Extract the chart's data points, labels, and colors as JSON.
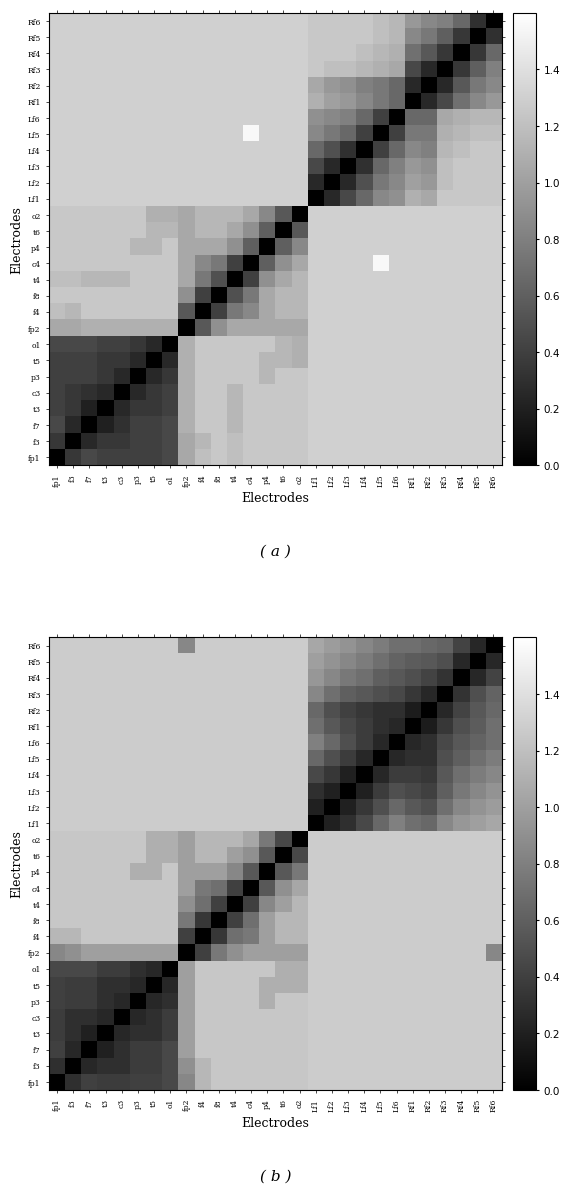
{
  "labels": [
    "fp1",
    "f3",
    "f7",
    "t3",
    "c3",
    "p3",
    "t5",
    "o1",
    "fp2",
    "f4",
    "f8",
    "t4",
    "c4",
    "p4",
    "t6",
    "o2",
    "Lf1",
    "Lf2",
    "Lf3",
    "Lf4",
    "Lf5",
    "Lf6",
    "Rf1",
    "Rf2",
    "Rf3",
    "Rf4",
    "Rf5",
    "Rf6"
  ],
  "vmin": 0,
  "vmax": 1.6,
  "colorbar_ticks": [
    0,
    0.2,
    0.4,
    0.6,
    0.8,
    1.0,
    1.2,
    1.4
  ],
  "xlabel": "Electrodes",
  "ylabel": "Electrodes",
  "label_a": "( a )",
  "label_b": "( b )",
  "cmap": "gray",
  "matrix_a": [
    [
      0.0,
      0.35,
      0.45,
      0.4,
      0.4,
      0.4,
      0.4,
      0.45,
      1.05,
      1.2,
      1.25,
      1.2,
      1.25,
      1.25,
      1.25,
      1.25,
      1.3,
      1.3,
      1.3,
      1.3,
      1.3,
      1.3,
      1.3,
      1.3,
      1.3,
      1.3,
      1.3,
      1.3
    ],
    [
      0.35,
      0.0,
      0.25,
      0.35,
      0.35,
      0.4,
      0.4,
      0.45,
      1.05,
      1.15,
      1.25,
      1.2,
      1.25,
      1.25,
      1.25,
      1.25,
      1.3,
      1.3,
      1.3,
      1.3,
      1.3,
      1.3,
      1.3,
      1.3,
      1.3,
      1.3,
      1.3,
      1.3
    ],
    [
      0.45,
      0.25,
      0.0,
      0.2,
      0.3,
      0.4,
      0.4,
      0.45,
      1.1,
      1.25,
      1.25,
      1.15,
      1.25,
      1.25,
      1.25,
      1.25,
      1.3,
      1.3,
      1.3,
      1.3,
      1.3,
      1.3,
      1.3,
      1.3,
      1.3,
      1.3,
      1.3,
      1.3
    ],
    [
      0.4,
      0.35,
      0.2,
      0.0,
      0.25,
      0.35,
      0.35,
      0.4,
      1.1,
      1.25,
      1.25,
      1.15,
      1.25,
      1.25,
      1.25,
      1.25,
      1.3,
      1.3,
      1.3,
      1.3,
      1.3,
      1.3,
      1.3,
      1.3,
      1.3,
      1.3,
      1.3,
      1.3
    ],
    [
      0.4,
      0.35,
      0.3,
      0.25,
      0.0,
      0.25,
      0.35,
      0.4,
      1.1,
      1.25,
      1.25,
      1.15,
      1.25,
      1.25,
      1.25,
      1.25,
      1.3,
      1.3,
      1.3,
      1.3,
      1.3,
      1.3,
      1.3,
      1.3,
      1.3,
      1.3,
      1.3,
      1.3
    ],
    [
      0.4,
      0.4,
      0.4,
      0.35,
      0.25,
      0.0,
      0.25,
      0.35,
      1.1,
      1.25,
      1.25,
      1.25,
      1.25,
      1.15,
      1.25,
      1.25,
      1.3,
      1.3,
      1.3,
      1.3,
      1.3,
      1.3,
      1.3,
      1.3,
      1.3,
      1.3,
      1.3,
      1.3
    ],
    [
      0.4,
      0.4,
      0.4,
      0.35,
      0.35,
      0.25,
      0.0,
      0.25,
      1.1,
      1.25,
      1.25,
      1.25,
      1.25,
      1.15,
      1.15,
      1.1,
      1.3,
      1.3,
      1.3,
      1.3,
      1.3,
      1.3,
      1.3,
      1.3,
      1.3,
      1.3,
      1.3,
      1.3
    ],
    [
      0.45,
      0.45,
      0.45,
      0.4,
      0.4,
      0.35,
      0.25,
      0.0,
      1.1,
      1.25,
      1.25,
      1.25,
      1.25,
      1.25,
      1.15,
      1.1,
      1.3,
      1.3,
      1.3,
      1.3,
      1.3,
      1.3,
      1.3,
      1.3,
      1.3,
      1.3,
      1.3,
      1.3
    ],
    [
      1.05,
      1.05,
      1.1,
      1.1,
      1.1,
      1.1,
      1.1,
      1.1,
      0.0,
      0.55,
      0.9,
      1.05,
      1.05,
      1.05,
      1.05,
      1.05,
      1.3,
      1.3,
      1.3,
      1.3,
      1.3,
      1.3,
      1.3,
      1.3,
      1.3,
      1.3,
      1.3,
      1.3
    ],
    [
      1.2,
      1.15,
      1.25,
      1.25,
      1.25,
      1.25,
      1.25,
      1.25,
      0.55,
      0.0,
      0.4,
      0.75,
      0.85,
      1.05,
      1.15,
      1.15,
      1.3,
      1.3,
      1.3,
      1.3,
      1.3,
      1.3,
      1.3,
      1.3,
      1.3,
      1.3,
      1.3,
      1.3
    ],
    [
      1.25,
      1.25,
      1.25,
      1.25,
      1.25,
      1.25,
      1.25,
      1.25,
      0.9,
      0.4,
      0.0,
      0.5,
      0.75,
      1.05,
      1.15,
      1.15,
      1.3,
      1.3,
      1.3,
      1.3,
      1.3,
      1.3,
      1.3,
      1.3,
      1.3,
      1.3,
      1.3,
      1.3
    ],
    [
      1.2,
      1.2,
      1.15,
      1.15,
      1.15,
      1.25,
      1.25,
      1.25,
      1.05,
      0.75,
      0.5,
      0.0,
      0.4,
      0.9,
      1.05,
      1.15,
      1.3,
      1.3,
      1.3,
      1.3,
      1.3,
      1.3,
      1.3,
      1.3,
      1.3,
      1.3,
      1.3,
      1.3
    ],
    [
      1.25,
      1.25,
      1.25,
      1.25,
      1.25,
      1.25,
      1.25,
      1.25,
      1.05,
      0.85,
      0.75,
      0.4,
      0.0,
      0.6,
      0.9,
      1.05,
      1.3,
      1.3,
      1.3,
      1.3,
      1.55,
      1.3,
      1.3,
      1.3,
      1.3,
      1.3,
      1.3,
      1.3
    ],
    [
      1.25,
      1.25,
      1.25,
      1.25,
      1.25,
      1.15,
      1.15,
      1.25,
      1.05,
      1.05,
      1.05,
      0.9,
      0.6,
      0.0,
      0.6,
      0.85,
      1.3,
      1.3,
      1.3,
      1.3,
      1.3,
      1.3,
      1.3,
      1.3,
      1.3,
      1.3,
      1.3,
      1.3
    ],
    [
      1.25,
      1.25,
      1.25,
      1.25,
      1.25,
      1.25,
      1.15,
      1.15,
      1.05,
      1.15,
      1.15,
      1.05,
      0.9,
      0.6,
      0.0,
      0.55,
      1.3,
      1.3,
      1.3,
      1.3,
      1.3,
      1.3,
      1.3,
      1.3,
      1.3,
      1.3,
      1.3,
      1.3
    ],
    [
      1.25,
      1.25,
      1.25,
      1.25,
      1.25,
      1.25,
      1.1,
      1.1,
      1.05,
      1.15,
      1.15,
      1.15,
      1.05,
      0.85,
      0.55,
      0.0,
      1.3,
      1.3,
      1.3,
      1.3,
      1.3,
      1.3,
      1.3,
      1.3,
      1.3,
      1.3,
      1.3,
      1.3
    ],
    [
      1.3,
      1.3,
      1.3,
      1.3,
      1.3,
      1.3,
      1.3,
      1.3,
      1.3,
      1.3,
      1.3,
      1.3,
      1.3,
      1.3,
      1.3,
      1.3,
      0.0,
      0.25,
      0.45,
      0.65,
      0.85,
      0.9,
      1.1,
      1.05,
      1.25,
      1.25,
      1.25,
      1.25
    ],
    [
      1.3,
      1.3,
      1.3,
      1.3,
      1.3,
      1.3,
      1.3,
      1.3,
      1.3,
      1.3,
      1.3,
      1.3,
      1.3,
      1.3,
      1.3,
      1.3,
      0.25,
      0.0,
      0.25,
      0.5,
      0.75,
      0.85,
      1.0,
      0.95,
      1.2,
      1.25,
      1.25,
      1.25
    ],
    [
      1.3,
      1.3,
      1.3,
      1.3,
      1.3,
      1.3,
      1.3,
      1.3,
      1.3,
      1.3,
      1.3,
      1.3,
      1.3,
      1.3,
      1.3,
      1.3,
      0.45,
      0.25,
      0.0,
      0.3,
      0.65,
      0.8,
      0.95,
      0.9,
      1.2,
      1.25,
      1.25,
      1.25
    ],
    [
      1.3,
      1.3,
      1.3,
      1.3,
      1.3,
      1.3,
      1.3,
      1.3,
      1.3,
      1.3,
      1.3,
      1.3,
      1.3,
      1.3,
      1.3,
      1.3,
      0.65,
      0.5,
      0.3,
      0.0,
      0.4,
      0.65,
      0.85,
      0.8,
      1.15,
      1.2,
      1.25,
      1.25
    ],
    [
      1.3,
      1.3,
      1.3,
      1.3,
      1.3,
      1.3,
      1.3,
      1.3,
      1.3,
      1.3,
      1.3,
      1.3,
      1.55,
      1.3,
      1.3,
      1.3,
      0.85,
      0.75,
      0.65,
      0.4,
      0.0,
      0.4,
      0.75,
      0.75,
      1.1,
      1.15,
      1.2,
      1.2
    ],
    [
      1.3,
      1.3,
      1.3,
      1.3,
      1.3,
      1.3,
      1.3,
      1.3,
      1.3,
      1.3,
      1.3,
      1.3,
      1.3,
      1.3,
      1.3,
      1.3,
      0.9,
      0.85,
      0.8,
      0.65,
      0.4,
      0.0,
      0.65,
      0.65,
      1.05,
      1.1,
      1.15,
      1.15
    ],
    [
      1.3,
      1.3,
      1.3,
      1.3,
      1.3,
      1.3,
      1.3,
      1.3,
      1.3,
      1.3,
      1.3,
      1.3,
      1.3,
      1.3,
      1.3,
      1.3,
      1.1,
      1.0,
      0.95,
      0.85,
      0.75,
      0.65,
      0.0,
      0.25,
      0.45,
      0.7,
      0.85,
      0.95
    ],
    [
      1.3,
      1.3,
      1.3,
      1.3,
      1.3,
      1.3,
      1.3,
      1.3,
      1.3,
      1.3,
      1.3,
      1.3,
      1.3,
      1.3,
      1.3,
      1.3,
      1.05,
      0.95,
      0.9,
      0.8,
      0.75,
      0.65,
      0.25,
      0.0,
      0.25,
      0.55,
      0.75,
      0.85
    ],
    [
      1.3,
      1.3,
      1.3,
      1.3,
      1.3,
      1.3,
      1.3,
      1.3,
      1.3,
      1.3,
      1.3,
      1.3,
      1.3,
      1.3,
      1.3,
      1.3,
      1.25,
      1.2,
      1.2,
      1.15,
      1.1,
      1.05,
      0.45,
      0.25,
      0.0,
      0.35,
      0.6,
      0.8
    ],
    [
      1.3,
      1.3,
      1.3,
      1.3,
      1.3,
      1.3,
      1.3,
      1.3,
      1.3,
      1.3,
      1.3,
      1.3,
      1.3,
      1.3,
      1.3,
      1.3,
      1.25,
      1.25,
      1.25,
      1.2,
      1.15,
      1.1,
      0.7,
      0.55,
      0.35,
      0.0,
      0.35,
      0.65
    ],
    [
      1.3,
      1.3,
      1.3,
      1.3,
      1.3,
      1.3,
      1.3,
      1.3,
      1.3,
      1.3,
      1.3,
      1.3,
      1.3,
      1.3,
      1.3,
      1.3,
      1.25,
      1.25,
      1.25,
      1.25,
      1.2,
      1.15,
      0.85,
      0.75,
      0.6,
      0.35,
      0.0,
      0.3
    ],
    [
      1.3,
      1.3,
      1.3,
      1.3,
      1.3,
      1.3,
      1.3,
      1.3,
      1.3,
      1.3,
      1.3,
      1.3,
      1.3,
      1.3,
      1.3,
      1.3,
      1.25,
      1.25,
      1.25,
      1.25,
      1.2,
      1.15,
      0.95,
      0.85,
      0.8,
      0.65,
      0.3,
      0.0
    ]
  ],
  "matrix_b": [
    [
      0.0,
      0.3,
      0.4,
      0.38,
      0.38,
      0.4,
      0.4,
      0.45,
      0.85,
      1.15,
      1.25,
      1.25,
      1.25,
      1.25,
      1.25,
      1.25,
      1.28,
      1.28,
      1.28,
      1.28,
      1.28,
      1.28,
      1.28,
      1.28,
      1.28,
      1.28,
      1.28,
      1.28
    ],
    [
      0.3,
      0.0,
      0.25,
      0.3,
      0.3,
      0.38,
      0.38,
      0.45,
      0.9,
      1.15,
      1.25,
      1.25,
      1.25,
      1.25,
      1.25,
      1.25,
      1.28,
      1.28,
      1.28,
      1.28,
      1.28,
      1.28,
      1.28,
      1.28,
      1.28,
      1.28,
      1.28,
      1.28
    ],
    [
      0.4,
      0.25,
      0.0,
      0.2,
      0.3,
      0.38,
      0.38,
      0.45,
      1.0,
      1.25,
      1.25,
      1.25,
      1.25,
      1.25,
      1.25,
      1.25,
      1.28,
      1.28,
      1.28,
      1.28,
      1.28,
      1.28,
      1.28,
      1.28,
      1.28,
      1.28,
      1.28,
      1.28
    ],
    [
      0.38,
      0.3,
      0.2,
      0.0,
      0.25,
      0.3,
      0.3,
      0.38,
      1.0,
      1.25,
      1.25,
      1.25,
      1.25,
      1.25,
      1.25,
      1.25,
      1.28,
      1.28,
      1.28,
      1.28,
      1.28,
      1.28,
      1.28,
      1.28,
      1.28,
      1.28,
      1.28,
      1.28
    ],
    [
      0.38,
      0.3,
      0.3,
      0.25,
      0.0,
      0.25,
      0.3,
      0.38,
      1.0,
      1.25,
      1.25,
      1.25,
      1.25,
      1.25,
      1.25,
      1.25,
      1.28,
      1.28,
      1.28,
      1.28,
      1.28,
      1.28,
      1.28,
      1.28,
      1.28,
      1.28,
      1.28,
      1.28
    ],
    [
      0.4,
      0.38,
      0.38,
      0.3,
      0.25,
      0.0,
      0.25,
      0.3,
      1.0,
      1.25,
      1.25,
      1.25,
      1.25,
      1.1,
      1.25,
      1.25,
      1.28,
      1.28,
      1.28,
      1.28,
      1.28,
      1.28,
      1.28,
      1.28,
      1.28,
      1.28,
      1.28,
      1.28
    ],
    [
      0.4,
      0.38,
      0.38,
      0.3,
      0.3,
      0.25,
      0.0,
      0.25,
      1.0,
      1.25,
      1.25,
      1.25,
      1.25,
      1.1,
      1.1,
      1.1,
      1.28,
      1.28,
      1.28,
      1.28,
      1.28,
      1.28,
      1.28,
      1.28,
      1.28,
      1.28,
      1.28,
      1.28
    ],
    [
      0.45,
      0.45,
      0.45,
      0.38,
      0.38,
      0.3,
      0.25,
      0.0,
      1.0,
      1.25,
      1.25,
      1.25,
      1.25,
      1.25,
      1.1,
      1.1,
      1.28,
      1.28,
      1.28,
      1.28,
      1.28,
      1.28,
      1.28,
      1.28,
      1.28,
      1.28,
      1.28,
      1.28
    ],
    [
      0.85,
      0.9,
      1.0,
      1.0,
      1.0,
      1.0,
      1.0,
      1.0,
      0.0,
      0.4,
      0.75,
      0.9,
      1.0,
      1.0,
      1.0,
      1.0,
      1.28,
      1.28,
      1.28,
      1.28,
      1.28,
      1.28,
      1.28,
      1.28,
      1.28,
      1.28,
      1.28,
      0.85
    ],
    [
      1.15,
      1.15,
      1.25,
      1.25,
      1.25,
      1.25,
      1.25,
      1.25,
      0.4,
      0.0,
      0.35,
      0.7,
      0.75,
      1.0,
      1.15,
      1.15,
      1.28,
      1.28,
      1.28,
      1.28,
      1.28,
      1.28,
      1.28,
      1.28,
      1.28,
      1.28,
      1.28,
      1.28
    ],
    [
      1.25,
      1.25,
      1.25,
      1.25,
      1.25,
      1.25,
      1.25,
      1.25,
      0.75,
      0.35,
      0.0,
      0.4,
      0.7,
      1.0,
      1.15,
      1.15,
      1.28,
      1.28,
      1.28,
      1.28,
      1.28,
      1.28,
      1.28,
      1.28,
      1.28,
      1.28,
      1.28,
      1.28
    ],
    [
      1.25,
      1.25,
      1.25,
      1.25,
      1.25,
      1.25,
      1.25,
      1.25,
      0.9,
      0.7,
      0.4,
      0.0,
      0.4,
      0.85,
      1.0,
      1.15,
      1.28,
      1.28,
      1.28,
      1.28,
      1.28,
      1.28,
      1.28,
      1.28,
      1.28,
      1.28,
      1.28,
      1.28
    ],
    [
      1.25,
      1.25,
      1.25,
      1.25,
      1.25,
      1.25,
      1.25,
      1.25,
      1.0,
      0.75,
      0.7,
      0.4,
      0.0,
      0.55,
      0.9,
      1.05,
      1.28,
      1.28,
      1.28,
      1.28,
      1.28,
      1.28,
      1.28,
      1.28,
      1.28,
      1.28,
      1.28,
      1.28
    ],
    [
      1.25,
      1.25,
      1.25,
      1.25,
      1.25,
      1.1,
      1.1,
      1.25,
      1.0,
      1.0,
      1.0,
      0.85,
      0.55,
      0.0,
      0.55,
      0.75,
      1.28,
      1.28,
      1.28,
      1.28,
      1.28,
      1.28,
      1.28,
      1.28,
      1.28,
      1.28,
      1.28,
      1.28
    ],
    [
      1.25,
      1.25,
      1.25,
      1.25,
      1.25,
      1.25,
      1.1,
      1.1,
      1.0,
      1.15,
      1.15,
      1.0,
      0.9,
      0.55,
      0.0,
      0.45,
      1.28,
      1.28,
      1.28,
      1.28,
      1.28,
      1.28,
      1.28,
      1.28,
      1.28,
      1.28,
      1.28,
      1.28
    ],
    [
      1.25,
      1.25,
      1.25,
      1.25,
      1.25,
      1.25,
      1.1,
      1.1,
      1.0,
      1.15,
      1.15,
      1.15,
      1.05,
      0.75,
      0.45,
      0.0,
      1.28,
      1.28,
      1.28,
      1.28,
      1.28,
      1.28,
      1.28,
      1.28,
      1.28,
      1.28,
      1.28,
      1.28
    ],
    [
      1.28,
      1.28,
      1.28,
      1.28,
      1.28,
      1.28,
      1.28,
      1.28,
      1.28,
      1.28,
      1.28,
      1.28,
      1.28,
      1.28,
      1.28,
      1.28,
      0.0,
      0.2,
      0.3,
      0.45,
      0.65,
      0.8,
      0.7,
      0.65,
      0.85,
      0.95,
      1.0,
      1.05
    ],
    [
      1.28,
      1.28,
      1.28,
      1.28,
      1.28,
      1.28,
      1.28,
      1.28,
      1.28,
      1.28,
      1.28,
      1.28,
      1.28,
      1.28,
      1.28,
      1.28,
      0.2,
      0.0,
      0.2,
      0.35,
      0.5,
      0.65,
      0.55,
      0.5,
      0.7,
      0.85,
      0.92,
      0.98
    ],
    [
      1.28,
      1.28,
      1.28,
      1.28,
      1.28,
      1.28,
      1.28,
      1.28,
      1.28,
      1.28,
      1.28,
      1.28,
      1.28,
      1.28,
      1.28,
      1.28,
      0.3,
      0.2,
      0.0,
      0.2,
      0.38,
      0.5,
      0.45,
      0.4,
      0.6,
      0.75,
      0.85,
      0.92
    ],
    [
      1.28,
      1.28,
      1.28,
      1.28,
      1.28,
      1.28,
      1.28,
      1.28,
      1.28,
      1.28,
      1.28,
      1.28,
      1.28,
      1.28,
      1.28,
      1.28,
      0.45,
      0.35,
      0.2,
      0.0,
      0.25,
      0.38,
      0.38,
      0.35,
      0.55,
      0.7,
      0.78,
      0.85
    ],
    [
      1.28,
      1.28,
      1.28,
      1.28,
      1.28,
      1.28,
      1.28,
      1.28,
      1.28,
      1.28,
      1.28,
      1.28,
      1.28,
      1.28,
      1.28,
      1.28,
      0.65,
      0.5,
      0.38,
      0.25,
      0.0,
      0.25,
      0.3,
      0.3,
      0.5,
      0.6,
      0.7,
      0.78
    ],
    [
      1.28,
      1.28,
      1.28,
      1.28,
      1.28,
      1.28,
      1.28,
      1.28,
      1.28,
      1.28,
      1.28,
      1.28,
      1.28,
      1.28,
      1.28,
      1.28,
      0.8,
      0.65,
      0.5,
      0.38,
      0.25,
      0.0,
      0.25,
      0.3,
      0.45,
      0.55,
      0.62,
      0.7
    ],
    [
      1.28,
      1.28,
      1.28,
      1.28,
      1.28,
      1.28,
      1.28,
      1.28,
      1.28,
      1.28,
      1.28,
      1.28,
      1.28,
      1.28,
      1.28,
      1.28,
      0.7,
      0.55,
      0.45,
      0.38,
      0.3,
      0.25,
      0.0,
      0.18,
      0.35,
      0.5,
      0.58,
      0.7
    ],
    [
      1.28,
      1.28,
      1.28,
      1.28,
      1.28,
      1.28,
      1.28,
      1.28,
      1.28,
      1.28,
      1.28,
      1.28,
      1.28,
      1.28,
      1.28,
      1.28,
      0.65,
      0.5,
      0.4,
      0.35,
      0.3,
      0.3,
      0.18,
      0.0,
      0.25,
      0.42,
      0.55,
      0.65
    ],
    [
      1.28,
      1.28,
      1.28,
      1.28,
      1.28,
      1.28,
      1.28,
      1.28,
      1.28,
      1.28,
      1.28,
      1.28,
      1.28,
      1.28,
      1.28,
      1.28,
      0.85,
      0.7,
      0.6,
      0.55,
      0.5,
      0.45,
      0.35,
      0.25,
      0.0,
      0.32,
      0.5,
      0.62
    ],
    [
      1.28,
      1.28,
      1.28,
      1.28,
      1.28,
      1.28,
      1.28,
      1.28,
      1.28,
      1.28,
      1.28,
      1.28,
      1.28,
      1.28,
      1.28,
      1.28,
      0.95,
      0.85,
      0.75,
      0.7,
      0.6,
      0.55,
      0.5,
      0.42,
      0.32,
      0.0,
      0.25,
      0.42
    ],
    [
      1.28,
      1.28,
      1.28,
      1.28,
      1.28,
      1.28,
      1.28,
      1.28,
      1.28,
      1.28,
      1.28,
      1.28,
      1.28,
      1.28,
      1.28,
      1.28,
      1.0,
      0.92,
      0.85,
      0.78,
      0.7,
      0.62,
      0.58,
      0.55,
      0.5,
      0.25,
      0.0,
      0.25
    ],
    [
      1.28,
      1.28,
      1.28,
      1.28,
      1.28,
      1.28,
      1.28,
      1.28,
      0.85,
      1.28,
      1.28,
      1.28,
      1.28,
      1.28,
      1.28,
      1.28,
      1.05,
      0.98,
      0.92,
      0.85,
      0.78,
      0.7,
      0.7,
      0.65,
      0.62,
      0.42,
      0.25,
      0.0
    ]
  ]
}
